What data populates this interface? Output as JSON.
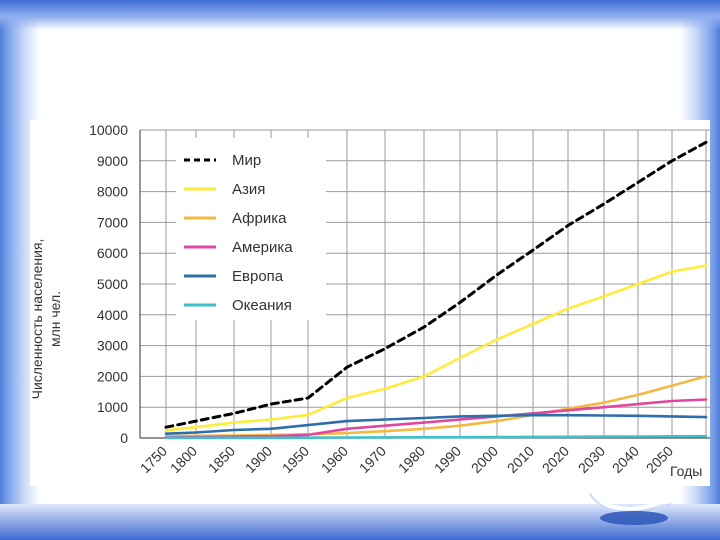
{
  "chart_data": {
    "type": "line",
    "title": "",
    "ylabel": "Численность населения,\nмлн чел.",
    "xlabel": "Годы",
    "ylim": [
      0,
      10000
    ],
    "yticks": [
      0,
      1000,
      2000,
      3000,
      4000,
      5000,
      6000,
      7000,
      8000,
      9000,
      10000
    ],
    "ytick_labels": [
      "0",
      "1000",
      "2000",
      "3000",
      "4000",
      "5000",
      "6000",
      "7000",
      "8000",
      "9000",
      "10000"
    ],
    "xticks": [
      1750,
      1800,
      1850,
      1900,
      1950,
      1960,
      1970,
      1980,
      1990,
      2000,
      2010,
      2020,
      2030,
      2040,
      2050
    ],
    "xtick_labels": [
      "1750",
      "1800",
      "1850",
      "1900",
      "1950",
      "1960",
      "1970",
      "1980",
      "1990",
      "2000",
      "2010",
      "2020",
      "2030",
      "2040",
      "2050"
    ],
    "grid": true,
    "legend_position": "top-left",
    "x": [
      1750,
      1800,
      1850,
      1900,
      1950,
      1960,
      1970,
      1980,
      1990,
      2000,
      2010,
      2020,
      2030,
      2040,
      2050,
      2060
    ],
    "series": [
      {
        "name": "Мир",
        "color": "#000000",
        "dash": true,
        "values": [
          350,
          550,
          800,
          1100,
          1300,
          2300,
          2900,
          3600,
          4400,
          5300,
          6100,
          6900,
          7600,
          8300,
          9000,
          9600
        ]
      },
      {
        "name": "Азия",
        "color": "#ffeb3b",
        "dash": false,
        "values": [
          250,
          350,
          500,
          600,
          750,
          1300,
          1600,
          2000,
          2600,
          3200,
          3700,
          4200,
          4600,
          5000,
          5400,
          5600
        ]
      },
      {
        "name": "Африка",
        "color": "#f5b942",
        "dash": false,
        "values": [
          60,
          70,
          80,
          100,
          120,
          160,
          220,
          300,
          400,
          550,
          750,
          950,
          1150,
          1400,
          1700,
          2000
        ]
      },
      {
        "name": "Америка",
        "color": "#e0479e",
        "dash": false,
        "values": [
          20,
          30,
          50,
          60,
          100,
          300,
          400,
          500,
          600,
          700,
          800,
          900,
          1000,
          1100,
          1200,
          1250
        ]
      },
      {
        "name": "Европа",
        "color": "#2f6ea8",
        "dash": false,
        "values": [
          140,
          180,
          260,
          300,
          420,
          550,
          600,
          650,
          700,
          720,
          740,
          740,
          730,
          720,
          700,
          680
        ]
      },
      {
        "name": "Океания",
        "color": "#3ec1cc",
        "dash": false,
        "values": [
          5,
          5,
          5,
          5,
          10,
          15,
          20,
          25,
          25,
          30,
          35,
          40,
          45,
          50,
          55,
          60
        ]
      }
    ]
  }
}
